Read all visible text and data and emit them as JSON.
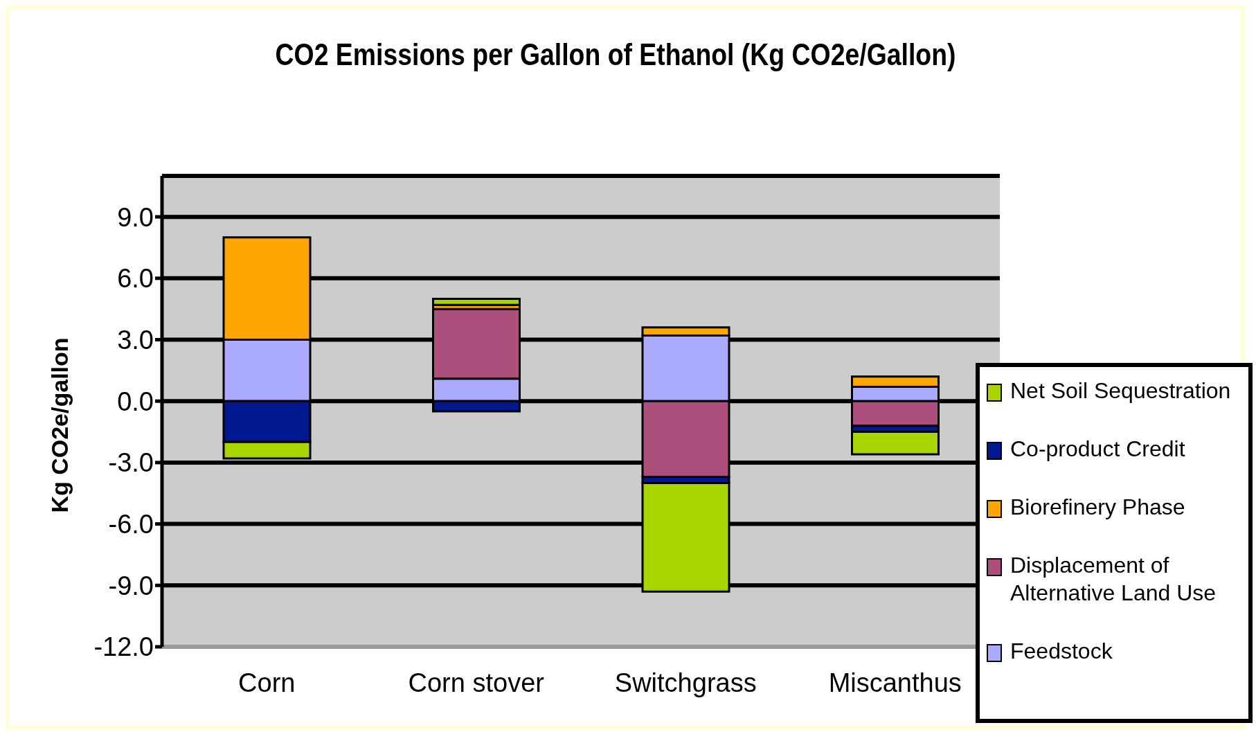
{
  "chart_data": {
    "type": "bar",
    "title": "CO2 Emissions per Gallon of Ethanol (Kg CO2e/Gallon)",
    "ylabel": "Kg CO2e/gallon",
    "categories": [
      "Corn",
      "Corn stover",
      "Switchgrass",
      "Miscanthus"
    ],
    "stacked": true,
    "series": [
      {
        "name": "Feedstock",
        "color": "#aaaaff",
        "values": [
          3.0,
          1.1,
          3.2,
          0.7
        ]
      },
      {
        "name": "Displacement of Alternative Land Use",
        "color": "#ad4f7c",
        "values": [
          0,
          3.4,
          -3.7,
          -1.2
        ]
      },
      {
        "name": "Biorefinery Phase",
        "color": "#ffa500",
        "values": [
          5.0,
          0.2,
          0.4,
          0.5
        ]
      },
      {
        "name": "Co-product Credit",
        "color": "#001890",
        "values": [
          -2.0,
          -0.5,
          -0.3,
          -0.3
        ]
      },
      {
        "name": "Net Soil Sequestration",
        "color": "#a8d400",
        "values": [
          -0.8,
          0.3,
          -5.3,
          -1.1
        ]
      }
    ],
    "ylim": [
      -12,
      11
    ],
    "yticks": [
      {
        "value": -12,
        "label": "-12.0"
      },
      {
        "value": -9,
        "label": "-9.0"
      },
      {
        "value": -6,
        "label": "-6.0"
      },
      {
        "value": -3,
        "label": "-3.0"
      },
      {
        "value": 0,
        "label": "0.0"
      },
      {
        "value": 3,
        "label": "3.0"
      },
      {
        "value": 6,
        "label": "6.0"
      },
      {
        "value": 9,
        "label": "9.0"
      }
    ],
    "grid": "y",
    "legend": "right"
  }
}
